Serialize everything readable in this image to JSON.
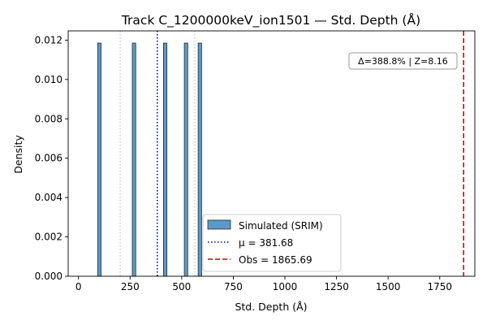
{
  "chart_data": {
    "type": "bar",
    "title": "Track C_1200000keV_ion1501 — Std. Depth (Å)",
    "xlabel": "Std. Depth (Å)",
    "ylabel": "Density",
    "xlim": [
      -50,
      1920
    ],
    "ylim": [
      0,
      0.01247
    ],
    "xticks": [
      0,
      250,
      500,
      750,
      1000,
      1250,
      1500,
      1750
    ],
    "xtick_labels": [
      "0",
      "250",
      "500",
      "750",
      "1000",
      "1250",
      "1500",
      "1750"
    ],
    "yticks": [
      0,
      0.002,
      0.004,
      0.006,
      0.008,
      0.01,
      0.012
    ],
    "ytick_labels": [
      "0.000",
      "0.002",
      "0.004",
      "0.006",
      "0.008",
      "0.010",
      "0.012"
    ],
    "histogram": {
      "name": "Simulated (SRIM)",
      "color": "#5b9ac8",
      "edge_color": "#2a2a2a",
      "bin_width": 16.8,
      "bins": [
        {
          "x": 101,
          "density": 0.01185
        },
        {
          "x": 269,
          "density": 0.01185
        },
        {
          "x": 420,
          "density": 0.01185
        },
        {
          "x": 521,
          "density": 0.01185
        },
        {
          "x": 588,
          "density": 0.01185
        }
      ]
    },
    "ci_lines": {
      "color": "#c0c0c0",
      "x": [
        202,
        563
      ]
    },
    "mean_line": {
      "label": "μ = 381.68",
      "x": 381.68,
      "color": "#0000cc"
    },
    "obs_line": {
      "label": "Obs = 1865.69",
      "x": 1865.69,
      "color": "#dd0000"
    },
    "annotation": "Δ=388.8% | Z=8.16",
    "legend_position": "lower-center"
  }
}
